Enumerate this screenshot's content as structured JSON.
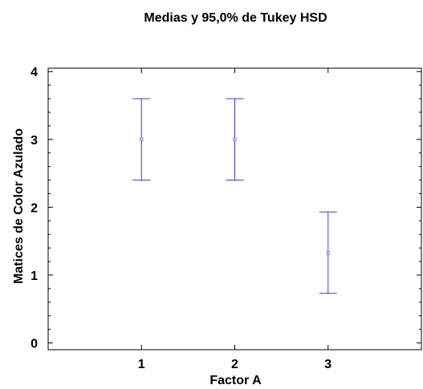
{
  "chart_data": {
    "type": "interval",
    "title": "Medias y 95,0% de Tukey HSD",
    "xlabel": "Factor A",
    "ylabel": "Matices de Color Azulado",
    "categories": [
      "1",
      "2",
      "3"
    ],
    "means": [
      3.0,
      3.0,
      1.33
    ],
    "lower": [
      2.4,
      2.4,
      0.73
    ],
    "upper": [
      3.6,
      3.6,
      1.93
    ],
    "xlim": [
      0,
      4
    ],
    "ylim": [
      -0.1,
      4.05
    ],
    "yticks": [
      0,
      1,
      2,
      3,
      4
    ],
    "grid": false,
    "series_color": "#3a3ad8"
  }
}
